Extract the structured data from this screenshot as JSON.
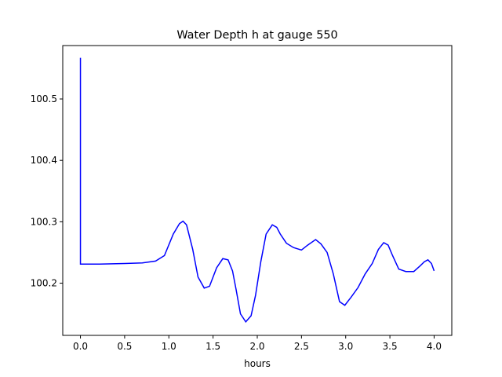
{
  "chart_data": {
    "type": "line",
    "title": "Water Depth h at gauge 550",
    "xlabel": "hours",
    "ylabel": "",
    "xlim": [
      -0.2,
      4.2
    ],
    "ylim": [
      100.115,
      100.587
    ],
    "xticks": [
      0.0,
      0.5,
      1.0,
      1.5,
      2.0,
      2.5,
      3.0,
      3.5,
      4.0
    ],
    "xtick_labels": [
      "0.0",
      "0.5",
      "1.0",
      "1.5",
      "2.0",
      "2.5",
      "3.0",
      "3.5",
      "4.0"
    ],
    "yticks": [
      100.2,
      100.3,
      100.4,
      100.5
    ],
    "ytick_labels": [
      "100.2",
      "100.3",
      "100.4",
      "100.5"
    ],
    "grid": false,
    "series": [
      {
        "color": "#0000ff",
        "x": [
          0.0,
          0.0,
          0.0,
          0.2,
          0.5,
          0.7,
          0.85,
          0.95,
          1.05,
          1.12,
          1.16,
          1.2,
          1.27,
          1.33,
          1.4,
          1.46,
          1.54,
          1.61,
          1.67,
          1.72,
          1.76,
          1.81,
          1.87,
          1.93,
          1.98,
          2.04,
          2.1,
          2.17,
          2.22,
          2.26,
          2.33,
          2.41,
          2.5,
          2.57,
          2.66,
          2.72,
          2.79,
          2.86,
          2.93,
          2.99,
          3.06,
          3.14,
          3.22,
          3.3,
          3.37,
          3.43,
          3.48,
          3.53,
          3.6,
          3.68,
          3.77,
          3.84,
          3.89,
          3.93,
          3.97,
          4.0
        ],
        "y": [
          100.567,
          100.232,
          100.231,
          100.231,
          100.232,
          100.233,
          100.236,
          100.245,
          100.28,
          100.297,
          100.301,
          100.295,
          100.255,
          100.21,
          100.192,
          100.195,
          100.225,
          100.24,
          100.238,
          100.22,
          100.19,
          100.15,
          100.137,
          100.147,
          100.18,
          100.235,
          100.28,
          100.295,
          100.291,
          100.28,
          100.265,
          100.258,
          100.254,
          100.262,
          100.271,
          100.264,
          100.25,
          100.215,
          100.17,
          100.164,
          100.177,
          100.193,
          100.215,
          100.232,
          100.255,
          100.266,
          100.262,
          100.245,
          100.223,
          100.219,
          100.219,
          100.228,
          100.235,
          100.238,
          100.232,
          100.22
        ]
      }
    ]
  }
}
